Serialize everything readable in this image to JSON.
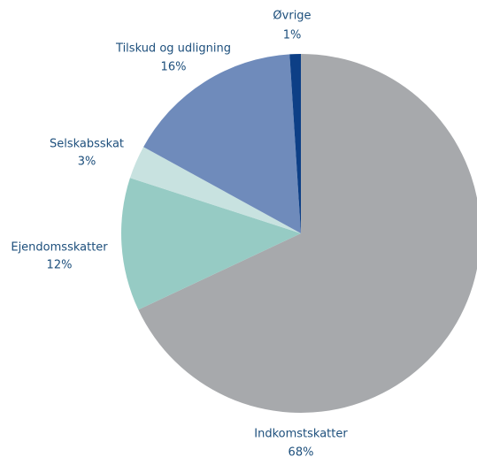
{
  "chart_data": {
    "type": "pie",
    "categories": [
      "Indkomstskatter",
      "Ejendomsskatter",
      "Selskabsskat",
      "Tilskud og udligning",
      "Øvrige"
    ],
    "values": [
      68,
      12,
      3,
      16,
      1
    ],
    "value_labels": [
      "68%",
      "12%",
      "3%",
      "16%",
      "1%"
    ],
    "colors": [
      "#a7a9ac",
      "#96cbc4",
      "#c8e2e0",
      "#6f8bbb",
      "#0d3f86"
    ]
  }
}
